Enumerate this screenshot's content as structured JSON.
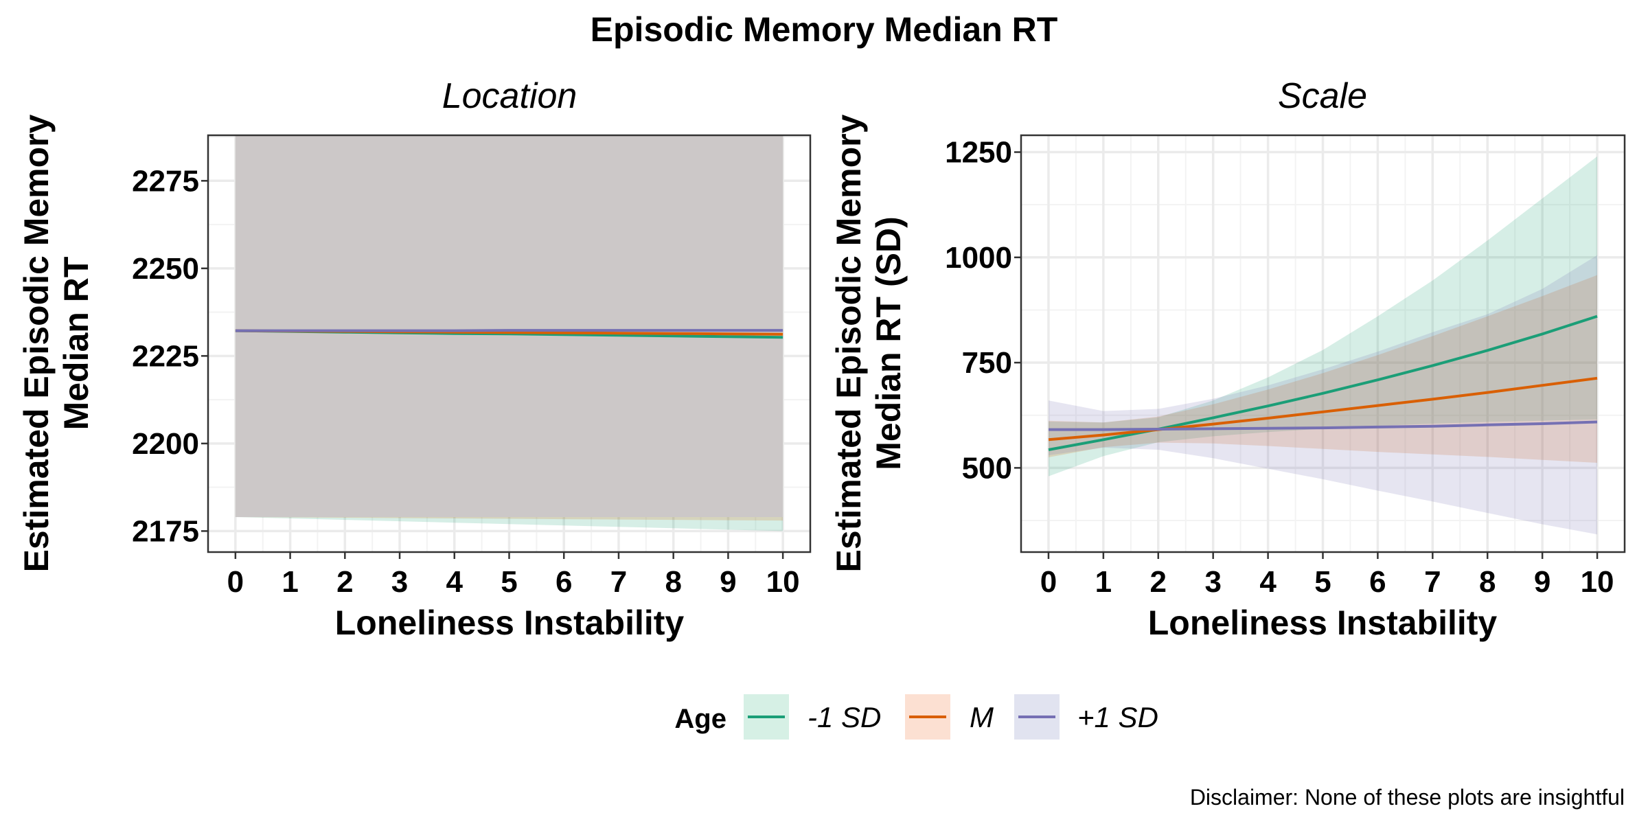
{
  "title": "Episodic Memory Median RT",
  "caption": "Disclaimer: None of these plots are insightful",
  "legend": {
    "title": "Age",
    "items": [
      {
        "label": "-1 SD",
        "color": "#1B9E77",
        "fill": "#D6F0E5"
      },
      {
        "label": "M",
        "color": "#D95F02",
        "fill": "#FCE0D2"
      },
      {
        "label": "+1 SD",
        "color": "#7570B3",
        "fill": "#E1E3F0"
      }
    ]
  },
  "colors": {
    "panel_border": "#333333",
    "grid_major": "#EBEBEB",
    "grid_minor": "#F3F3F3",
    "overlap_band": "#CCC8C8"
  },
  "chart_data": [
    {
      "type": "line",
      "facet": "Location",
      "xlabel": "Loneliness Instability",
      "ylabel_lines": [
        "Estimated Episodic Memory",
        "Median RT"
      ],
      "xlim": [
        -0.5,
        10.5
      ],
      "ylim": [
        2169,
        2288
      ],
      "xticks": [
        0,
        1,
        2,
        3,
        4,
        5,
        6,
        7,
        8,
        9,
        10
      ],
      "yticks": [
        2175,
        2200,
        2225,
        2250,
        2275
      ],
      "x": [
        0,
        1,
        2,
        3,
        4,
        5,
        6,
        7,
        8,
        9,
        10
      ],
      "series": [
        {
          "name": "-1 SD",
          "values": [
            2232.2,
            2232.0,
            2231.8,
            2231.6,
            2231.4,
            2231.3,
            2231.1,
            2230.9,
            2230.7,
            2230.5,
            2230.3
          ],
          "lower": [
            2179.0,
            2178.6,
            2178.2,
            2177.8,
            2177.4,
            2177.0,
            2176.6,
            2176.2,
            2175.8,
            2175.4,
            2175.0
          ],
          "upper": [
            2288.0,
            2288.0,
            2288.0,
            2288.0,
            2288.0,
            2288.0,
            2288.0,
            2288.0,
            2288.0,
            2288.0,
            2288.0
          ]
        },
        {
          "name": "M",
          "values": [
            2232.2,
            2232.1,
            2232.0,
            2231.9,
            2231.8,
            2231.7,
            2231.6,
            2231.5,
            2231.4,
            2231.3,
            2231.2
          ],
          "lower": [
            2179.0,
            2178.9,
            2178.8,
            2178.7,
            2178.6,
            2178.5,
            2178.4,
            2178.3,
            2178.2,
            2178.1,
            2178.0
          ],
          "upper": [
            2288.0,
            2288.0,
            2288.0,
            2288.0,
            2288.0,
            2288.0,
            2288.0,
            2288.0,
            2288.0,
            2288.0,
            2288.0
          ]
        },
        {
          "name": "+1 SD",
          "values": [
            2232.2,
            2232.2,
            2232.2,
            2232.2,
            2232.2,
            2232.3,
            2232.3,
            2232.3,
            2232.3,
            2232.3,
            2232.3
          ],
          "lower": [
            2179.0,
            2179.0,
            2179.0,
            2179.0,
            2179.0,
            2179.0,
            2179.0,
            2179.0,
            2179.0,
            2179.0,
            2179.0
          ],
          "upper": [
            2288.0,
            2288.0,
            2288.0,
            2288.0,
            2288.0,
            2288.0,
            2288.0,
            2288.0,
            2288.0,
            2288.0,
            2288.0
          ]
        }
      ]
    },
    {
      "type": "line",
      "facet": "Scale",
      "xlabel": "Loneliness Instability",
      "ylabel_lines": [
        "Estimated Episodic Memory",
        "Median RT (SD)"
      ],
      "xlim": [
        -0.5,
        10.5
      ],
      "ylim": [
        300,
        1290
      ],
      "xticks": [
        0,
        1,
        2,
        3,
        4,
        5,
        6,
        7,
        8,
        9,
        10
      ],
      "yticks": [
        500,
        750,
        1000,
        1250
      ],
      "x": [
        0,
        1,
        2,
        3,
        4,
        5,
        6,
        7,
        8,
        9,
        10
      ],
      "series": [
        {
          "name": "-1 SD",
          "values": [
            543,
            567,
            592,
            619,
            647,
            677,
            709,
            743,
            779,
            818,
            860
          ],
          "lower": [
            480,
            528,
            561,
            575,
            585,
            593,
            600,
            605,
            609,
            612,
            615
          ],
          "upper": [
            610,
            608,
            620,
            660,
            715,
            780,
            860,
            945,
            1040,
            1140,
            1240
          ]
        },
        {
          "name": "M",
          "values": [
            567,
            578,
            591,
            604,
            618,
            633,
            648,
            663,
            679,
            696,
            713
          ],
          "lower": [
            525,
            549,
            560,
            558,
            552,
            545,
            538,
            532,
            526,
            519,
            512
          ],
          "upper": [
            612,
            608,
            622,
            651,
            686,
            725,
            768,
            813,
            860,
            908,
            958
          ]
        },
        {
          "name": "+1 SD",
          "values": [
            591,
            591,
            592,
            593,
            594,
            595,
            597,
            599,
            602,
            605,
            609
          ],
          "lower": [
            530,
            548,
            543,
            523,
            498,
            473,
            446,
            420,
            393,
            366,
            342
          ],
          "upper": [
            660,
            635,
            640,
            664,
            696,
            734,
            776,
            822,
            865,
            925,
            1005
          ]
        }
      ]
    }
  ]
}
